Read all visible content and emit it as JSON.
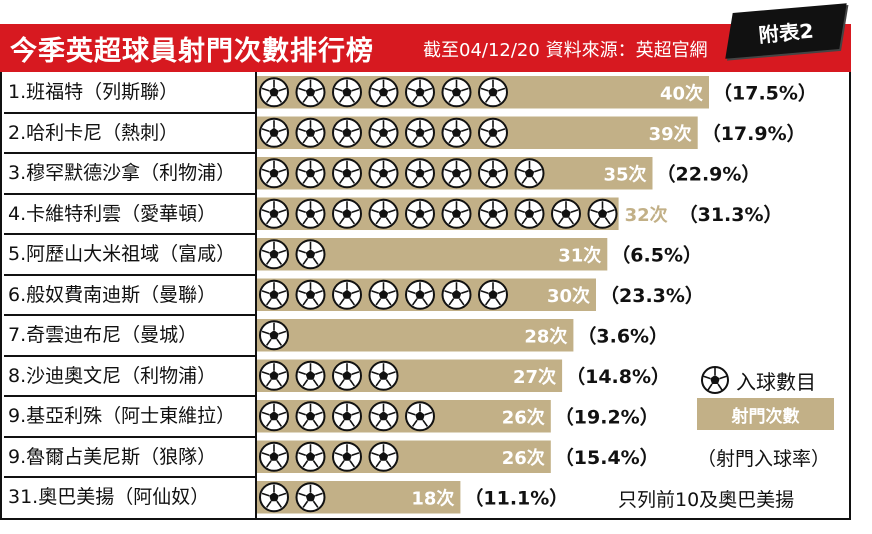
{
  "header": {
    "title": "今季英超球員射門次數排行榜",
    "source": "截至04/12/20 資料來源：英超官網",
    "tag": "附表2"
  },
  "legend": {
    "goals_label": "入球數目",
    "shots_label": "射門次數",
    "rate_label": "（射門入球率）"
  },
  "footnote": "只列前10及奧巴美揚",
  "colors": {
    "bar": "#c2b087",
    "header": "#d71920",
    "ball": "#111111"
  },
  "chart_data": {
    "type": "bar",
    "orientation": "horizontal",
    "title": "今季英超球員射門次數排行榜",
    "categories": [
      "1.班福特（列斯聯）",
      "2.哈利卡尼（熱刺）",
      "3.穆罕默德沙拿（利物浦）",
      "4.卡維特利雲（愛華頓）",
      "5.阿歷山大米祖域（富咸）",
      "6.般奴費南迪斯（曼聯）",
      "7.奇雲迪布尼（曼城）",
      "8.沙迪奧文尼（利物浦）",
      "9.基亞利殊（阿士東維拉）",
      "9.魯爾占美尼斯（狼隊）",
      "31.奧巴美揚（阿仙奴）"
    ],
    "series": [
      {
        "name": "射門次數",
        "values": [
          40,
          39,
          35,
          32,
          31,
          30,
          28,
          27,
          26,
          26,
          18
        ]
      },
      {
        "name": "入球數目",
        "values": [
          7,
          7,
          8,
          10,
          2,
          7,
          1,
          4,
          5,
          4,
          2
        ]
      }
    ],
    "value_labels": [
      "40次",
      "39次",
      "35次",
      "32次",
      "31次",
      "30次",
      "28次",
      "27次",
      "26次",
      "26次",
      "18次"
    ],
    "rate_labels": [
      "（17.5%）",
      "（17.9%）",
      "（22.9%）",
      "（31.3%）",
      "（6.5%）",
      "（23.3%）",
      "（3.6%）",
      "（14.8%）",
      "（19.2%）",
      "（15.4%）",
      "（11.1%）"
    ]
  }
}
